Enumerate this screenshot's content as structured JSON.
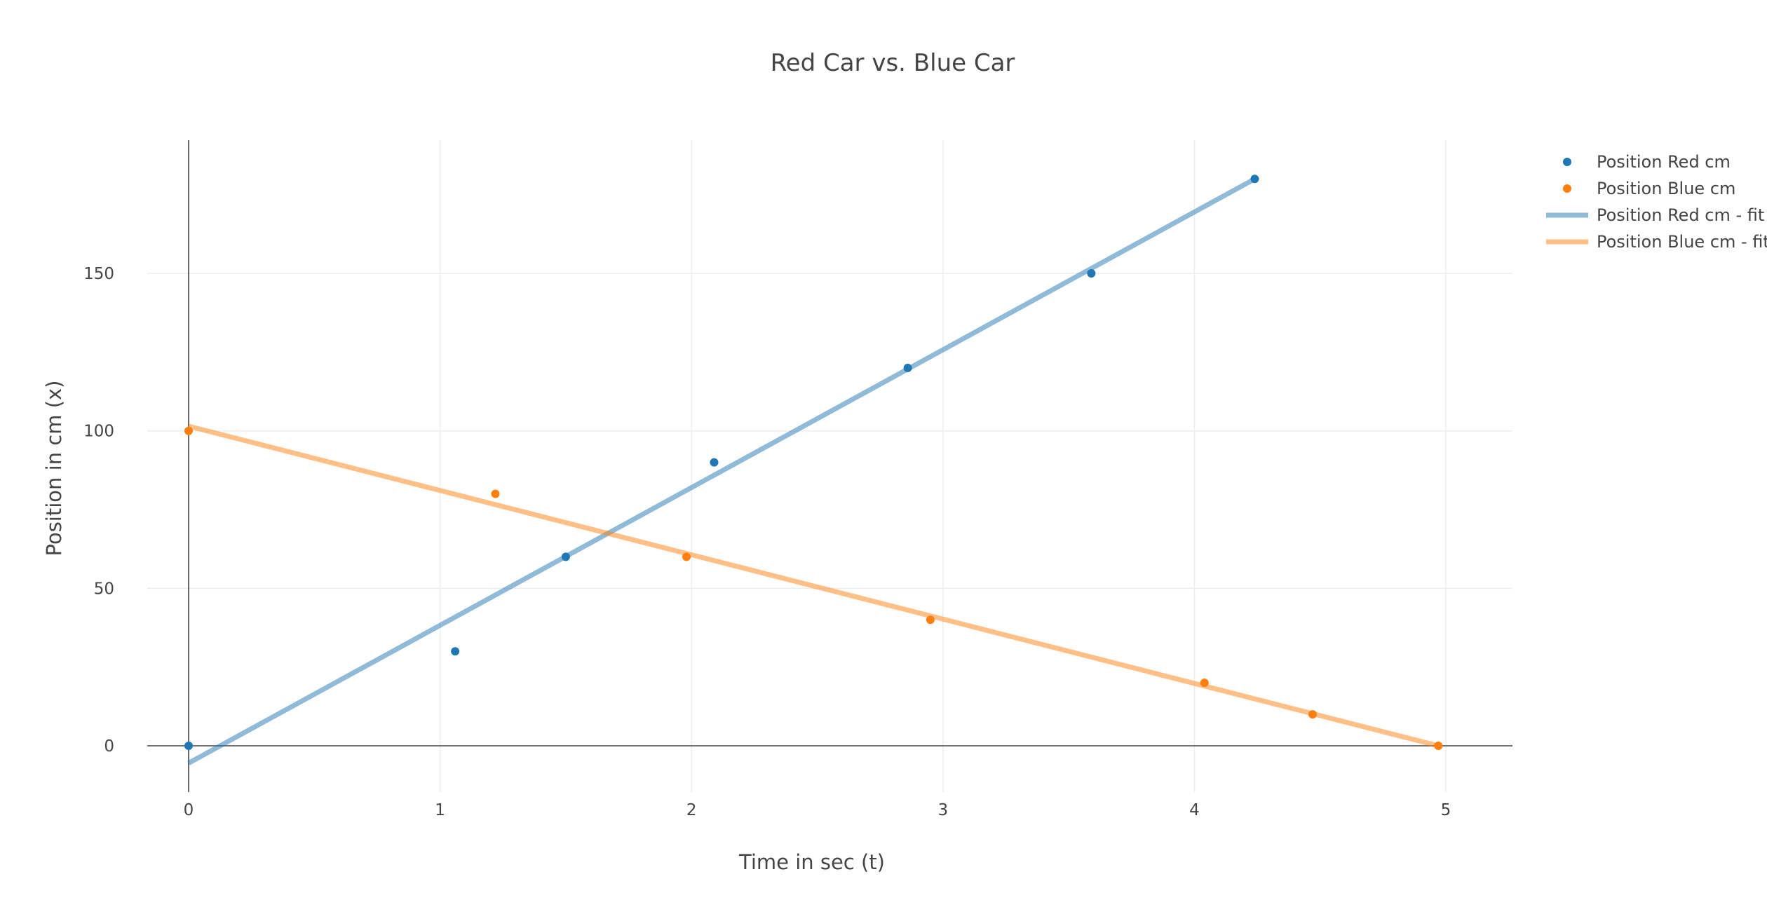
{
  "chart_data": {
    "type": "scatter",
    "title": "Red Car vs. Blue Car",
    "xlabel": "Time in sec (t)",
    "ylabel": "Position in cm (x)",
    "xlim": [
      -0.18,
      5.27
    ],
    "ylim": [
      -15,
      192
    ],
    "x_ticks": [
      0,
      1,
      2,
      3,
      4,
      5
    ],
    "y_ticks": [
      0,
      50,
      100,
      150
    ],
    "grid": true,
    "legend_position": "top-right",
    "series": [
      {
        "name": "Position Red cm",
        "mode": "markers",
        "color": "#1f77b4",
        "x": [
          0,
          1.06,
          1.5,
          2.09,
          2.86,
          3.59,
          4.24
        ],
        "y": [
          0,
          30,
          60,
          90,
          120,
          150,
          180
        ]
      },
      {
        "name": "Position Blue cm",
        "mode": "markers",
        "color": "#ff7f0e",
        "x": [
          0,
          1.22,
          1.98,
          2.95,
          4.04,
          4.47,
          4.97
        ],
        "y": [
          100,
          80,
          60,
          40,
          20,
          10,
          0
        ]
      },
      {
        "name": "Position Red cm - fit",
        "mode": "lines",
        "color": "#1f77b4",
        "opacity": 0.5,
        "x": [
          0,
          4.24
        ],
        "y": [
          -5.5,
          180
        ]
      },
      {
        "name": "Position Blue cm - fit",
        "mode": "lines",
        "color": "#ff7f0e",
        "opacity": 0.5,
        "x": [
          0,
          4.97
        ],
        "y": [
          101.5,
          0
        ]
      }
    ]
  }
}
